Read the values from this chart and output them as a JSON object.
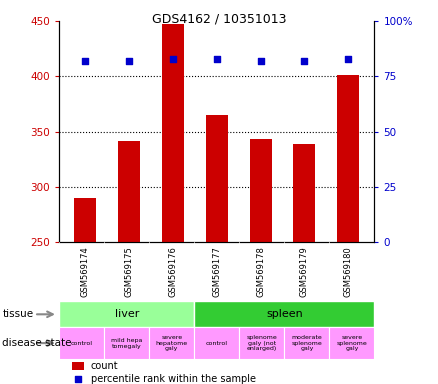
{
  "title": "GDS4162 / 10351013",
  "samples": [
    "GSM569174",
    "GSM569175",
    "GSM569176",
    "GSM569177",
    "GSM569178",
    "GSM569179",
    "GSM569180"
  ],
  "counts": [
    290,
    341,
    447,
    365,
    343,
    339,
    401
  ],
  "percentiles": [
    82,
    82,
    83,
    83,
    82,
    82,
    83
  ],
  "ylim_left": [
    250,
    450
  ],
  "ylim_right": [
    0,
    100
  ],
  "yticks_left": [
    250,
    300,
    350,
    400,
    450
  ],
  "yticks_right": [
    0,
    25,
    50,
    75,
    100
  ],
  "bar_color": "#cc0000",
  "dot_color": "#0000cc",
  "tissue_liver_label": "liver",
  "tissue_spleen_label": "spleen",
  "tissue_liver_color": "#99ff99",
  "tissue_spleen_color": "#33cc33",
  "disease_labels": [
    "control",
    "mild hepa\ntomegaly",
    "severe\nhepatome\ngaly",
    "control",
    "splenome\ngaly (not\nenlarged)",
    "moderate\nsplenome\ngaly",
    "severe\nsplenome\ngaly"
  ],
  "disease_color": "#ff99ff",
  "bar_width": 0.5,
  "background_label": "#cccccc"
}
